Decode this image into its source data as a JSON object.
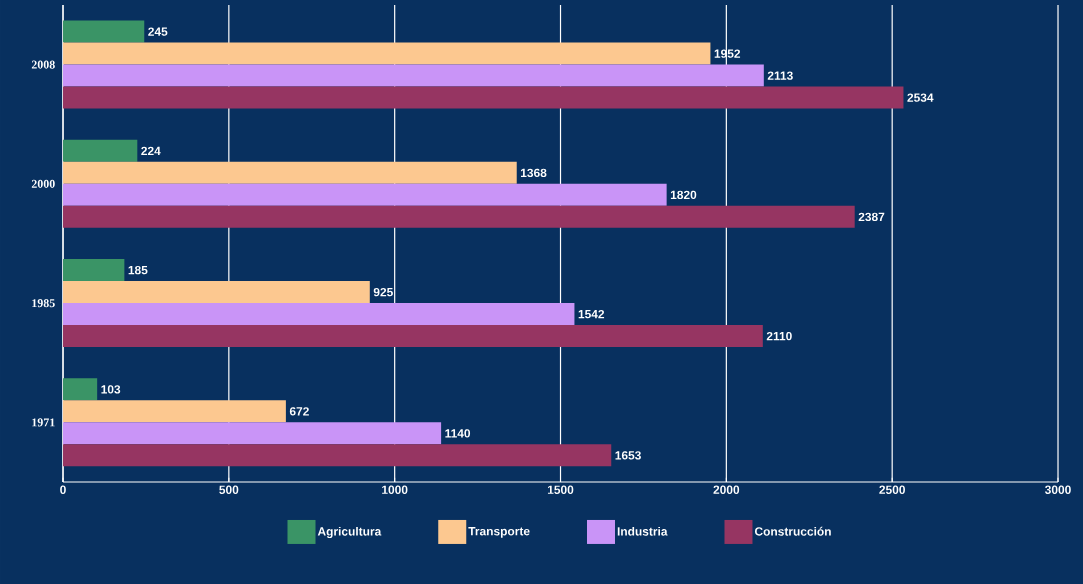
{
  "chart_data": {
    "type": "bar",
    "orientation": "horizontal",
    "categories": [
      "2008",
      "2000",
      "1985",
      "1971"
    ],
    "series": [
      {
        "name": "Agricultura",
        "color": "#3a9466",
        "values": [
          245,
          224,
          185,
          103
        ]
      },
      {
        "name": "Transporte",
        "color": "#fcc890",
        "values": [
          1952,
          1368,
          925,
          672
        ]
      },
      {
        "name": "Industria",
        "color": "#c994f7",
        "values": [
          2113,
          1820,
          1542,
          1140
        ]
      },
      {
        "name": "Construcción",
        "color": "#963562",
        "values": [
          2534,
          2387,
          2110,
          1653
        ]
      }
    ],
    "xlim": [
      0,
      3000
    ],
    "xticks": [
      0,
      500,
      1000,
      1500,
      2000,
      2500,
      3000
    ],
    "grid": "x",
    "legend": "bottom",
    "data_labels": true
  }
}
